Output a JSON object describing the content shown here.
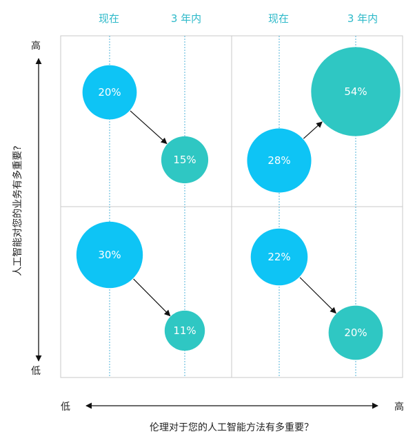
{
  "colors": {
    "now": "#0ec4f5",
    "future": "#2fc7c3",
    "header": "#2db9c9",
    "grid": "#c8c8c8",
    "guide": "#4fb3d8"
  },
  "chart_data": {
    "type": "bubble",
    "column_labels": [
      "现在",
      "3 年内",
      "现在",
      "3 年内"
    ],
    "x_axis": {
      "title": "伦理对于您的人工智能方法有多重要？",
      "low": "低",
      "high": "高"
    },
    "y_axis": {
      "title": "人工智能对您的业务有多重要?",
      "low": "低",
      "high": "高"
    },
    "quadrants": [
      {
        "x": "低",
        "y": "高",
        "now": 20,
        "in_3_years": 15
      },
      {
        "x": "高",
        "y": "高",
        "now": 28,
        "in_3_years": 54
      },
      {
        "x": "低",
        "y": "低",
        "now": 30,
        "in_3_years": 11
      },
      {
        "x": "高",
        "y": "低",
        "now": 22,
        "in_3_years": 20
      }
    ]
  }
}
